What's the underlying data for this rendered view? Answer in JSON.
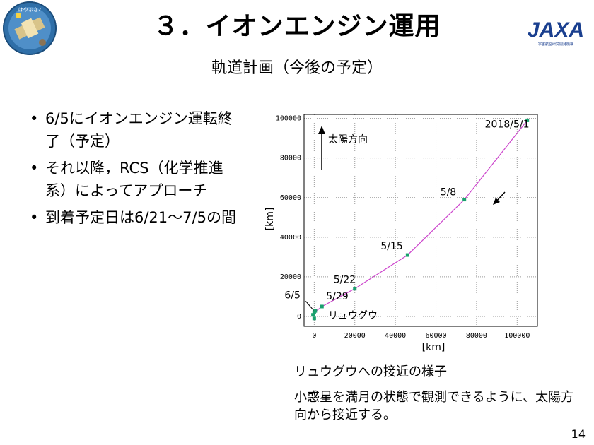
{
  "header": {
    "title": "３．イオンエンジン運用",
    "subtitle": "軌道計画（今後の予定）",
    "logo_left_text": "はやぶさ2",
    "logo_right_text": "JAXA",
    "logo_right_small": "宇宙航空研究開発機構"
  },
  "bullets": [
    "6/5にイオンエンジン運転終了（予定）",
    "それ以降，RCS（化学推進系）によってアプローチ",
    "到着予定日は6/21～7/5の間"
  ],
  "chart_data": {
    "type": "line",
    "xlabel": "[km]",
    "ylabel": "[km]",
    "xlim": [
      -5000,
      110000
    ],
    "ylim": [
      -5000,
      102000
    ],
    "xticks": [
      0,
      20000,
      40000,
      60000,
      80000,
      100000
    ],
    "yticks": [
      0,
      20000,
      40000,
      60000,
      80000,
      100000
    ],
    "grid": true,
    "series": [
      {
        "x": [
          0,
          3800,
          20000,
          46000,
          74000,
          105000
        ],
        "y": [
          2000,
          5000,
          14000,
          31000,
          59000,
          99000
        ]
      }
    ],
    "points": [
      {
        "label": "2018/5/1",
        "x": 105000,
        "y": 99000
      },
      {
        "label": "5/8",
        "x": 74000,
        "y": 59000
      },
      {
        "label": "5/15",
        "x": 46000,
        "y": 31000
      },
      {
        "label": "5/22",
        "x": 20000,
        "y": 14000
      },
      {
        "label": "5/29",
        "x": 3800,
        "y": 5000
      },
      {
        "label": "6/5",
        "x": 0,
        "y": 2000
      }
    ],
    "annotations": {
      "sun_direction": "太陽方向",
      "target": "リュウグウ"
    },
    "colors": {
      "line": "#cc44cc",
      "marker": "#1aa06e",
      "grid": "#999999"
    }
  },
  "captions": {
    "line1": "リュウグウへの接近の様子",
    "line2": "小惑星を満月の状態で観測できるように、太陽方向から接近する。"
  },
  "page_number": "14"
}
